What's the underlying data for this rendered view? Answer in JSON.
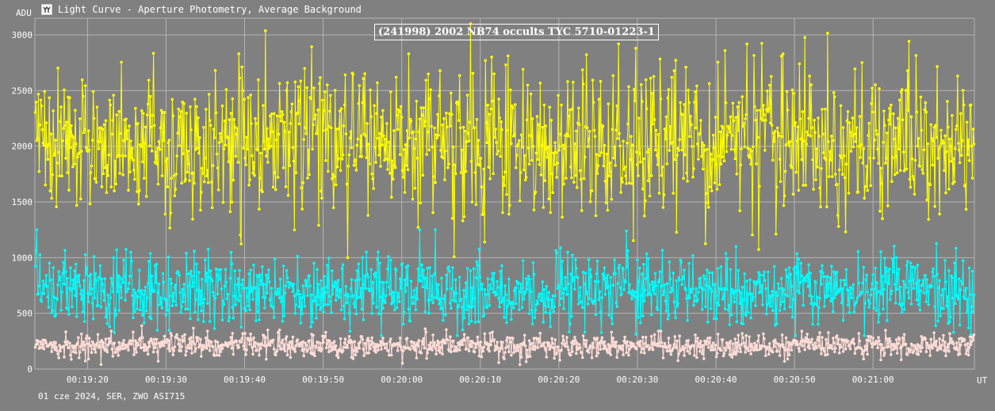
{
  "window": {
    "title": "Light Curve - Aperture Photometry, Average Background",
    "icon": "light-curve-app-icon"
  },
  "footer": {
    "info": "01 cze 2024, SER, ZWO ASI715"
  },
  "colors": {
    "background": "#808080",
    "grid": "#b4b4b4",
    "text": "#ffffff",
    "target": "#ffff00",
    "comparison": "#00ffff",
    "background_series": "#ffdcd7"
  },
  "chart_data": {
    "type": "line",
    "title": "(241998) 2002 NB74 occults TYC 5710-01223-1",
    "ylabel": "ADU",
    "xlabel": "UT",
    "ylim": [
      0,
      3150
    ],
    "xlim": [
      "00:19:13.3",
      "00:21:12.9"
    ],
    "y_ticks": [
      0,
      500,
      1000,
      1500,
      2000,
      2500,
      3000
    ],
    "x_ticks": [
      "00:19:20",
      "00:19:30",
      "00:19:40",
      "00:19:50",
      "00:20:00",
      "00:20:10",
      "00:20:20",
      "00:20:30",
      "00:20:40",
      "00:20:50",
      "00:21:00"
    ],
    "grid": true,
    "markers": true,
    "series": [
      {
        "color": "#ffff00",
        "approx_mean": 2050,
        "approx_typical_range": [
          1400,
          2700
        ],
        "approx_min": 1000,
        "approx_max": 3100
      },
      {
        "color": "#00ffff",
        "approx_mean": 700,
        "approx_typical_range": [
          400,
          1000
        ],
        "approx_min": 300,
        "approx_max": 1250
      },
      {
        "color": "#ffdcd7",
        "approx_mean": 210,
        "approx_typical_range": [
          120,
          320
        ],
        "approx_min": 40,
        "approx_max": 400
      }
    ]
  }
}
